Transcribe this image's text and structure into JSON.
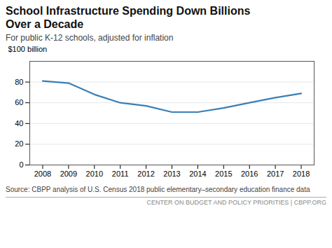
{
  "chart_data": {
    "type": "line",
    "title": "School Infrastructure Spending Down Billions\nOver a Decade",
    "subtitle": "For public K-12 schools, adjusted for inflation",
    "ylabel": "$100 billion",
    "source": "Source: CBPP analysis of U.S. Census 2018 public elementary–secondary education finance data",
    "footer": "CENTER ON BUDGET AND POLICY PRIORITIES | CBPP.ORG",
    "x": [
      2008,
      2009,
      2010,
      2011,
      2012,
      2013,
      2014,
      2015,
      2016,
      2017,
      2018
    ],
    "values": [
      81,
      79,
      68,
      60,
      57,
      51,
      51,
      55,
      60,
      65,
      69
    ],
    "color": "#3a7fb5",
    "xlim": [
      2007.5,
      2018.5
    ],
    "xticks": [
      2008,
      2009,
      2010,
      2011,
      2012,
      2013,
      2014,
      2015,
      2016,
      2017,
      2018
    ],
    "ylim": [
      0,
      100
    ],
    "yticks": [
      0,
      20,
      40,
      60,
      80
    ],
    "grid": true
  }
}
